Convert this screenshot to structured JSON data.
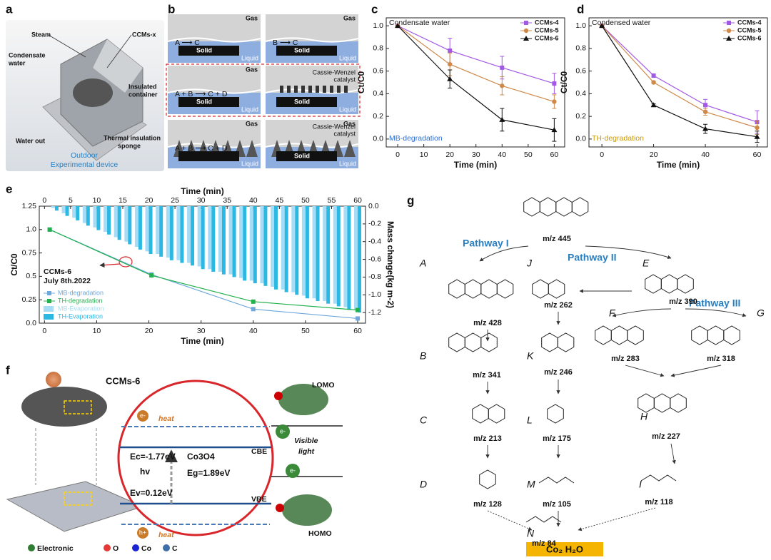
{
  "panel_labels": [
    "a",
    "b",
    "c",
    "d",
    "e",
    "f",
    "g"
  ],
  "a": {
    "steam": "Steam",
    "ccms": "CCMs-x",
    "condensate": [
      "Condensate",
      "water"
    ],
    "container": [
      "Insulated",
      "container"
    ],
    "water_out": "Water out",
    "sponge": [
      "Thermal insulation",
      "sponge"
    ],
    "caption": [
      "Outdoor",
      "Experimental device"
    ]
  },
  "b": {
    "cells": [
      {
        "gas": "Gas",
        "liquid": "Liquid",
        "solid": "Solid",
        "reaction": "A ⟶ C"
      },
      {
        "gas": "Gas",
        "liquid": "Liquid",
        "solid": "Solid",
        "reaction": "B ⟶ C"
      },
      {
        "gas": "Gas",
        "liquid": "Liquid",
        "solid": "Solid",
        "reaction": "A + B ⟶ C + D"
      },
      {
        "liquid": "Liquid",
        "solid": "Solid",
        "note": [
          "Cassie-Wenzel",
          "catalyst"
        ]
      },
      {
        "gas": "Gas",
        "liquid": "Liquid",
        "reaction": "A + B ⟶ C + D"
      },
      {
        "gas": "Gas",
        "liquid": "Liquid",
        "solid": "Solid",
        "note": [
          "Cassie-Wenzel",
          "catalyst"
        ]
      }
    ]
  },
  "chart_data": [
    {
      "type": "line",
      "annotations": [
        "Condensate water",
        "MB-degradation"
      ],
      "x": [
        0,
        20,
        40,
        60
      ],
      "xlim": [
        -4.4,
        64
      ],
      "xticks": [
        0,
        10,
        20,
        30,
        40,
        50,
        60
      ],
      "ylim": [
        -0.07,
        1.07
      ],
      "yticks": [
        {
          "value": 0,
          "label": "0.0"
        },
        {
          "value": 0.2,
          "label": "0.2"
        },
        {
          "value": 0.4,
          "label": "0.4"
        },
        {
          "value": 0.6,
          "label": "0.6"
        },
        {
          "value": 0.8,
          "label": "0.8"
        },
        {
          "value": 1,
          "label": "1.0"
        }
      ],
      "xlabel": "Time (min)",
      "ylabel": "Ct/C0",
      "legend": "upper right",
      "series": [
        {
          "name": "CCMs-4",
          "color": "#a259e6",
          "marker": "square",
          "values": [
            1,
            0.78,
            0.63,
            0.49
          ],
          "errors": [
            0,
            0.11,
            0.1,
            0.09
          ]
        },
        {
          "name": "CCMs-5",
          "color": "#cf8a4a",
          "marker": "circle",
          "values": [
            1,
            0.66,
            0.47,
            0.33
          ],
          "errors": [
            0,
            0.1,
            0.08,
            0.06
          ]
        },
        {
          "name": "CCMs-6",
          "color": "#111111",
          "marker": "triangle",
          "values": [
            1,
            0.53,
            0.17,
            0.08
          ],
          "errors": [
            0,
            0.08,
            0.1,
            0.1
          ]
        }
      ]
    },
    {
      "type": "line",
      "annotations": [
        "Condensed water",
        "TH-degradation"
      ],
      "x": [
        0,
        20,
        40,
        60
      ],
      "xlim": [
        -5,
        64
      ],
      "xticks": [
        0,
        20,
        40,
        60
      ],
      "ylim": [
        -0.07,
        1.07
      ],
      "yticks": [
        {
          "value": 0,
          "label": "0.0"
        },
        {
          "value": 0.2,
          "label": "0.2"
        },
        {
          "value": 0.4,
          "label": "0.4"
        },
        {
          "value": 0.6,
          "label": "0.6"
        },
        {
          "value": 0.8,
          "label": "0.8"
        },
        {
          "value": 1,
          "label": "1.0"
        }
      ],
      "xlabel": "Time (min)",
      "ylabel": "Ct/C0",
      "legend": "upper right",
      "series": [
        {
          "name": "CCMs-4",
          "color": "#a259e6",
          "marker": "square",
          "values": [
            1,
            0.56,
            0.3,
            0.15
          ],
          "errors": [
            0,
            0.01,
            0.05,
            0.1
          ]
        },
        {
          "name": "CCMs-5",
          "color": "#cf8a4a",
          "marker": "circle",
          "values": [
            1,
            0.5,
            0.24,
            0.1
          ],
          "errors": [
            0,
            0.01,
            0.03,
            0.06
          ]
        },
        {
          "name": "CCMs-6",
          "color": "#111111",
          "marker": "triangle",
          "values": [
            1,
            0.3,
            0.09,
            0.02
          ],
          "errors": [
            0,
            0.01,
            0.04,
            0.05
          ]
        }
      ]
    },
    {
      "type": "line-bar",
      "annotations": [
        "CCMs-6",
        "July 8th.2022"
      ],
      "xlabel": "Time (min)",
      "x2label": "Time (min)",
      "ylabel": "Ct/C0",
      "y2label": "Mass change(kg m-2)",
      "xlim": [
        -1,
        61.5
      ],
      "xticks": [
        0,
        10,
        20,
        30,
        40,
        50,
        60
      ],
      "x2ticks": [
        0,
        5,
        10,
        15,
        20,
        25,
        30,
        35,
        40,
        45,
        50,
        55,
        60
      ],
      "ylim": [
        0,
        1.25
      ],
      "yticks": [
        {
          "value": 0,
          "label": "0.0"
        },
        0.25,
        {
          "value": 0.5,
          "label": "0.5"
        },
        0.75,
        {
          "value": 1,
          "label": "1.0"
        },
        1.25
      ],
      "y2lim": [
        -1.32,
        0
      ],
      "y2ticks": [
        {
          "value": 0,
          "label": "0.0"
        },
        -0.2,
        -0.4,
        -0.6,
        -0.8,
        {
          "value": -1,
          "label": "-1.0"
        },
        -1.2
      ],
      "legend": "lower left",
      "series": [
        {
          "name": "MB-Evaporation",
          "kind": "bar",
          "axis": "y2",
          "color": "#a6dcf5",
          "x": [
            2,
            4,
            6,
            8,
            10,
            12,
            14,
            16,
            18,
            20,
            22,
            24,
            26,
            28,
            30,
            32,
            34,
            36,
            38,
            40,
            42,
            44,
            46,
            48,
            50,
            52,
            54,
            56,
            58,
            60
          ],
          "values": [
            -0.02,
            -0.08,
            -0.13,
            -0.19,
            -0.24,
            -0.29,
            -0.35,
            -0.4,
            -0.46,
            -0.51,
            -0.54,
            -0.58,
            -0.61,
            -0.64,
            -0.68,
            -0.71,
            -0.74,
            -0.77,
            -0.81,
            -0.84,
            -0.87,
            -0.91,
            -0.94,
            -0.97,
            -1.01,
            -1.04,
            -1.07,
            -1.1,
            -1.14,
            -1.17
          ]
        },
        {
          "name": "TH-Evaporation",
          "kind": "bar",
          "axis": "y2",
          "color": "#2bb8e3",
          "x": [
            2,
            4,
            6,
            8,
            10,
            12,
            14,
            16,
            18,
            20,
            22,
            24,
            26,
            28,
            30,
            32,
            34,
            36,
            38,
            40,
            42,
            44,
            46,
            48,
            50,
            52,
            54,
            56,
            58,
            60
          ],
          "values": [
            -0.05,
            -0.11,
            -0.16,
            -0.22,
            -0.27,
            -0.32,
            -0.38,
            -0.43,
            -0.49,
            -0.54,
            -0.57,
            -0.61,
            -0.64,
            -0.67,
            -0.71,
            -0.74,
            -0.77,
            -0.8,
            -0.84,
            -0.87,
            -0.9,
            -0.94,
            -0.97,
            -1,
            -1.04,
            -1.07,
            -1.1,
            -1.13,
            -1.17,
            -1.2
          ]
        },
        {
          "name": "MB-degradation",
          "color": "#6fa8dc",
          "marker": "square",
          "x": [
            1,
            20.5,
            40,
            60
          ],
          "values": [
            1,
            0.52,
            0.15,
            0.05
          ]
        },
        {
          "name": "TH-degradation",
          "color": "#22b14c",
          "marker": "square",
          "x": [
            1,
            20.5,
            40,
            60
          ],
          "values": [
            1,
            0.51,
            0.23,
            0.14
          ]
        }
      ]
    }
  ],
  "f": {
    "material": "CCMs-6",
    "electron": "e-",
    "hole": "h+",
    "heat": "heat",
    "ec": "Ec=-1.77eV",
    "hv": "hv",
    "catalyst": "Co3O4",
    "eg": "Eg=1.89eV",
    "ev": "Ev=0.12eV",
    "cbe": "CBE",
    "vbe": "VBE",
    "lomo": "LOMO",
    "homo": "HOMO",
    "light": [
      "Visible",
      "light"
    ],
    "legend": [
      "Electronic",
      "O",
      "Co",
      "C"
    ]
  },
  "g": {
    "pathways": [
      "Pathway I",
      "Pathway II",
      "Pathway III"
    ],
    "nodes": [
      {
        "mz": "m/z 445"
      },
      {
        "letter": "A",
        "mz": "m/z 428"
      },
      {
        "letter": "J",
        "mz": "m/z 262"
      },
      {
        "letter": "E",
        "mz": "m/z 390"
      },
      {
        "letter": "B",
        "mz": "m/z 341"
      },
      {
        "letter": "K",
        "mz": "m/z 246"
      },
      {
        "letter": "F",
        "mz": "m/z 283"
      },
      {
        "letter": "G",
        "mz": "m/z 318"
      },
      {
        "letter": "H",
        "mz": "m/z 227"
      },
      {
        "letter": "C",
        "mz": "m/z 213"
      },
      {
        "letter": "L",
        "mz": "m/z 175"
      },
      {
        "letter": "D",
        "mz": "m/z 128"
      },
      {
        "letter": "M",
        "mz": "m/z 105"
      },
      {
        "letter": "I",
        "mz": "m/z 118"
      },
      {
        "letter": "N",
        "mz": "m/z 84"
      }
    ],
    "products": "Co₂   H₂O"
  }
}
